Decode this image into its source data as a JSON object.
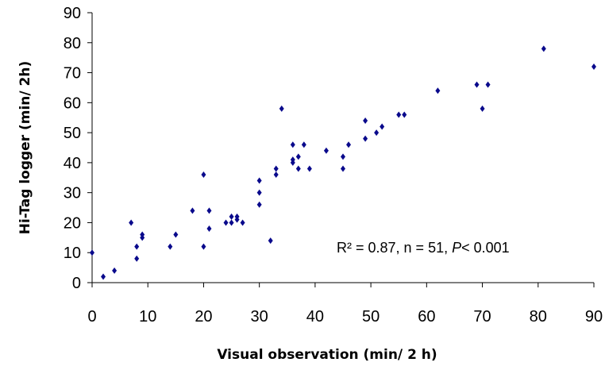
{
  "chart_data": {
    "type": "scatter",
    "title": "",
    "xlabel": "Visual observation (min/ 2 h)",
    "ylabel": "Hi-Tag  logger  (min/ 2h)",
    "xlim": [
      0,
      90
    ],
    "ylim": [
      0,
      90
    ],
    "xticks": [
      0,
      10,
      20,
      30,
      40,
      50,
      60,
      70,
      80,
      90
    ],
    "yticks": [
      0,
      10,
      20,
      30,
      40,
      50,
      60,
      70,
      80,
      90
    ],
    "grid": false,
    "annotation": {
      "main": "R² = 0.87, n = 51, ",
      "p_symbol": "P",
      "p_value": "< 0.001"
    },
    "marker_color": "#0a0a8c",
    "points": [
      {
        "x": 0,
        "y": 10
      },
      {
        "x": 2,
        "y": 2
      },
      {
        "x": 4,
        "y": 4
      },
      {
        "x": 7,
        "y": 20
      },
      {
        "x": 8,
        "y": 12
      },
      {
        "x": 8,
        "y": 8
      },
      {
        "x": 9,
        "y": 16
      },
      {
        "x": 14,
        "y": 12
      },
      {
        "x": 15,
        "y": 16
      },
      {
        "x": 18,
        "y": 24
      },
      {
        "x": 20,
        "y": 36
      },
      {
        "x": 20,
        "y": 12
      },
      {
        "x": 21,
        "y": 24
      },
      {
        "x": 21,
        "y": 18
      },
      {
        "x": 24,
        "y": 20
      },
      {
        "x": 25,
        "y": 20
      },
      {
        "x": 25,
        "y": 22
      },
      {
        "x": 26,
        "y": 22
      },
      {
        "x": 27,
        "y": 20
      },
      {
        "x": 30,
        "y": 34
      },
      {
        "x": 30,
        "y": 30
      },
      {
        "x": 30,
        "y": 26
      },
      {
        "x": 32,
        "y": 14
      },
      {
        "x": 33,
        "y": 38
      },
      {
        "x": 33,
        "y": 36
      },
      {
        "x": 34,
        "y": 58
      },
      {
        "x": 36,
        "y": 46
      },
      {
        "x": 36,
        "y": 40
      },
      {
        "x": 37,
        "y": 42
      },
      {
        "x": 37,
        "y": 38
      },
      {
        "x": 38,
        "y": 46
      },
      {
        "x": 39,
        "y": 38
      },
      {
        "x": 42,
        "y": 44
      },
      {
        "x": 45,
        "y": 42
      },
      {
        "x": 45,
        "y": 38
      },
      {
        "x": 46,
        "y": 46
      },
      {
        "x": 49,
        "y": 54
      },
      {
        "x": 49,
        "y": 48
      },
      {
        "x": 51,
        "y": 50
      },
      {
        "x": 52,
        "y": 52
      },
      {
        "x": 55,
        "y": 56
      },
      {
        "x": 56,
        "y": 56
      },
      {
        "x": 62,
        "y": 64
      },
      {
        "x": 69,
        "y": 66
      },
      {
        "x": 70,
        "y": 58
      },
      {
        "x": 71,
        "y": 66
      },
      {
        "x": 81,
        "y": 78
      },
      {
        "x": 90,
        "y": 72
      },
      {
        "x": 36,
        "y": 41
      },
      {
        "x": 26,
        "y": 21
      },
      {
        "x": 9,
        "y": 15
      }
    ]
  }
}
